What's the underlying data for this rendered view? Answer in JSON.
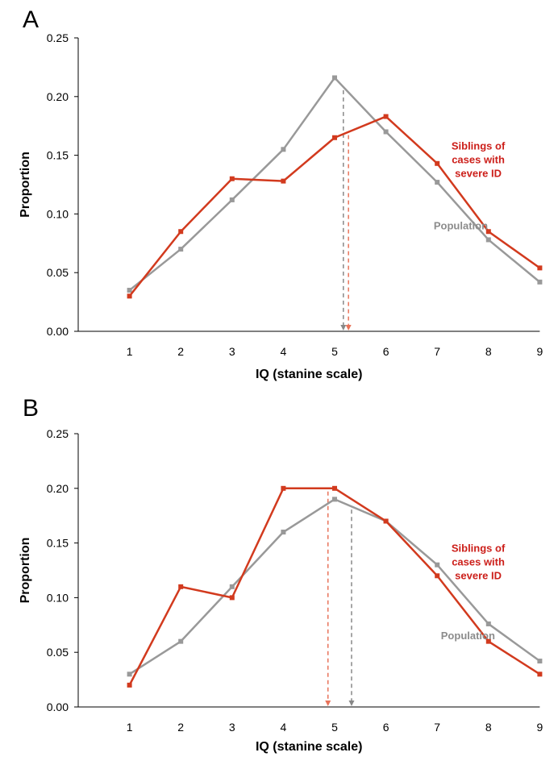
{
  "chart_data": [
    {
      "type": "line",
      "panel_label": "A",
      "title": "",
      "xlabel": "IQ (stanine scale)",
      "ylabel": "Proportion",
      "categories": [
        "1",
        "2",
        "3",
        "4",
        "5",
        "6",
        "7",
        "8",
        "9"
      ],
      "x": [
        1,
        2,
        3,
        4,
        5,
        6,
        7,
        8,
        9
      ],
      "xlim": [
        0,
        9
      ],
      "ylim": [
        0,
        0.25
      ],
      "yticks": [
        "0.00",
        "0.05",
        "0.10",
        "0.15",
        "0.20",
        "0.25"
      ],
      "ytick_values": [
        0,
        0.05,
        0.1,
        0.15,
        0.2,
        0.25
      ],
      "grid": false,
      "series": [
        {
          "name": "Population",
          "color": "#999999",
          "values": [
            0.035,
            0.07,
            0.112,
            0.155,
            0.216,
            0.17,
            0.127,
            0.078,
            0.042
          ]
        },
        {
          "name": "Siblings of cases with severe ID",
          "color": "#d23a1e",
          "values": [
            0.03,
            0.085,
            0.13,
            0.128,
            0.165,
            0.183,
            0.143,
            0.085,
            0.054
          ]
        }
      ],
      "mean_markers": [
        {
          "series": "Population",
          "x": 5.17,
          "color": "#888888"
        },
        {
          "series": "Siblings of cases with severe ID",
          "x": 5.27,
          "color": "#e8735a"
        }
      ],
      "annotations": [
        {
          "lines": [
            "Siblings of",
            "cases with",
            "severe ID"
          ],
          "color": "#cc1f1a",
          "x": 7.8,
          "y": 0.155
        },
        {
          "lines": [
            "Population"
          ],
          "color": "#8c8c8c",
          "x": 7.46,
          "y": 0.087
        }
      ]
    },
    {
      "type": "line",
      "panel_label": "B",
      "title": "",
      "xlabel": "IQ (stanine scale)",
      "ylabel": "Proportion",
      "categories": [
        "1",
        "2",
        "3",
        "4",
        "5",
        "6",
        "7",
        "8",
        "9"
      ],
      "x": [
        1,
        2,
        3,
        4,
        5,
        6,
        7,
        8,
        9
      ],
      "xlim": [
        0,
        9
      ],
      "ylim": [
        0,
        0.25
      ],
      "yticks": [
        "0.00",
        "0.05",
        "0.10",
        "0.15",
        "0.20",
        "0.25"
      ],
      "ytick_values": [
        0,
        0.05,
        0.1,
        0.15,
        0.2,
        0.25
      ],
      "grid": false,
      "series": [
        {
          "name": "Population",
          "color": "#999999",
          "values": [
            0.03,
            0.06,
            0.11,
            0.16,
            0.19,
            0.17,
            0.13,
            0.076,
            0.042
          ]
        },
        {
          "name": "Siblings of cases with severe ID",
          "color": "#d23a1e",
          "values": [
            0.02,
            0.11,
            0.1,
            0.2,
            0.2,
            0.17,
            0.12,
            0.06,
            0.03
          ]
        }
      ],
      "mean_markers": [
        {
          "series": "Siblings of cases with severe ID",
          "x": 4.87,
          "color": "#e8735a"
        },
        {
          "series": "Population",
          "x": 5.33,
          "color": "#888888"
        }
      ],
      "annotations": [
        {
          "lines": [
            "Siblings of",
            "cases with",
            "severe ID"
          ],
          "color": "#cc1f1a",
          "x": 7.8,
          "y": 0.142
        },
        {
          "lines": [
            "Population"
          ],
          "color": "#8c8c8c",
          "x": 7.6,
          "y": 0.062
        }
      ]
    }
  ]
}
